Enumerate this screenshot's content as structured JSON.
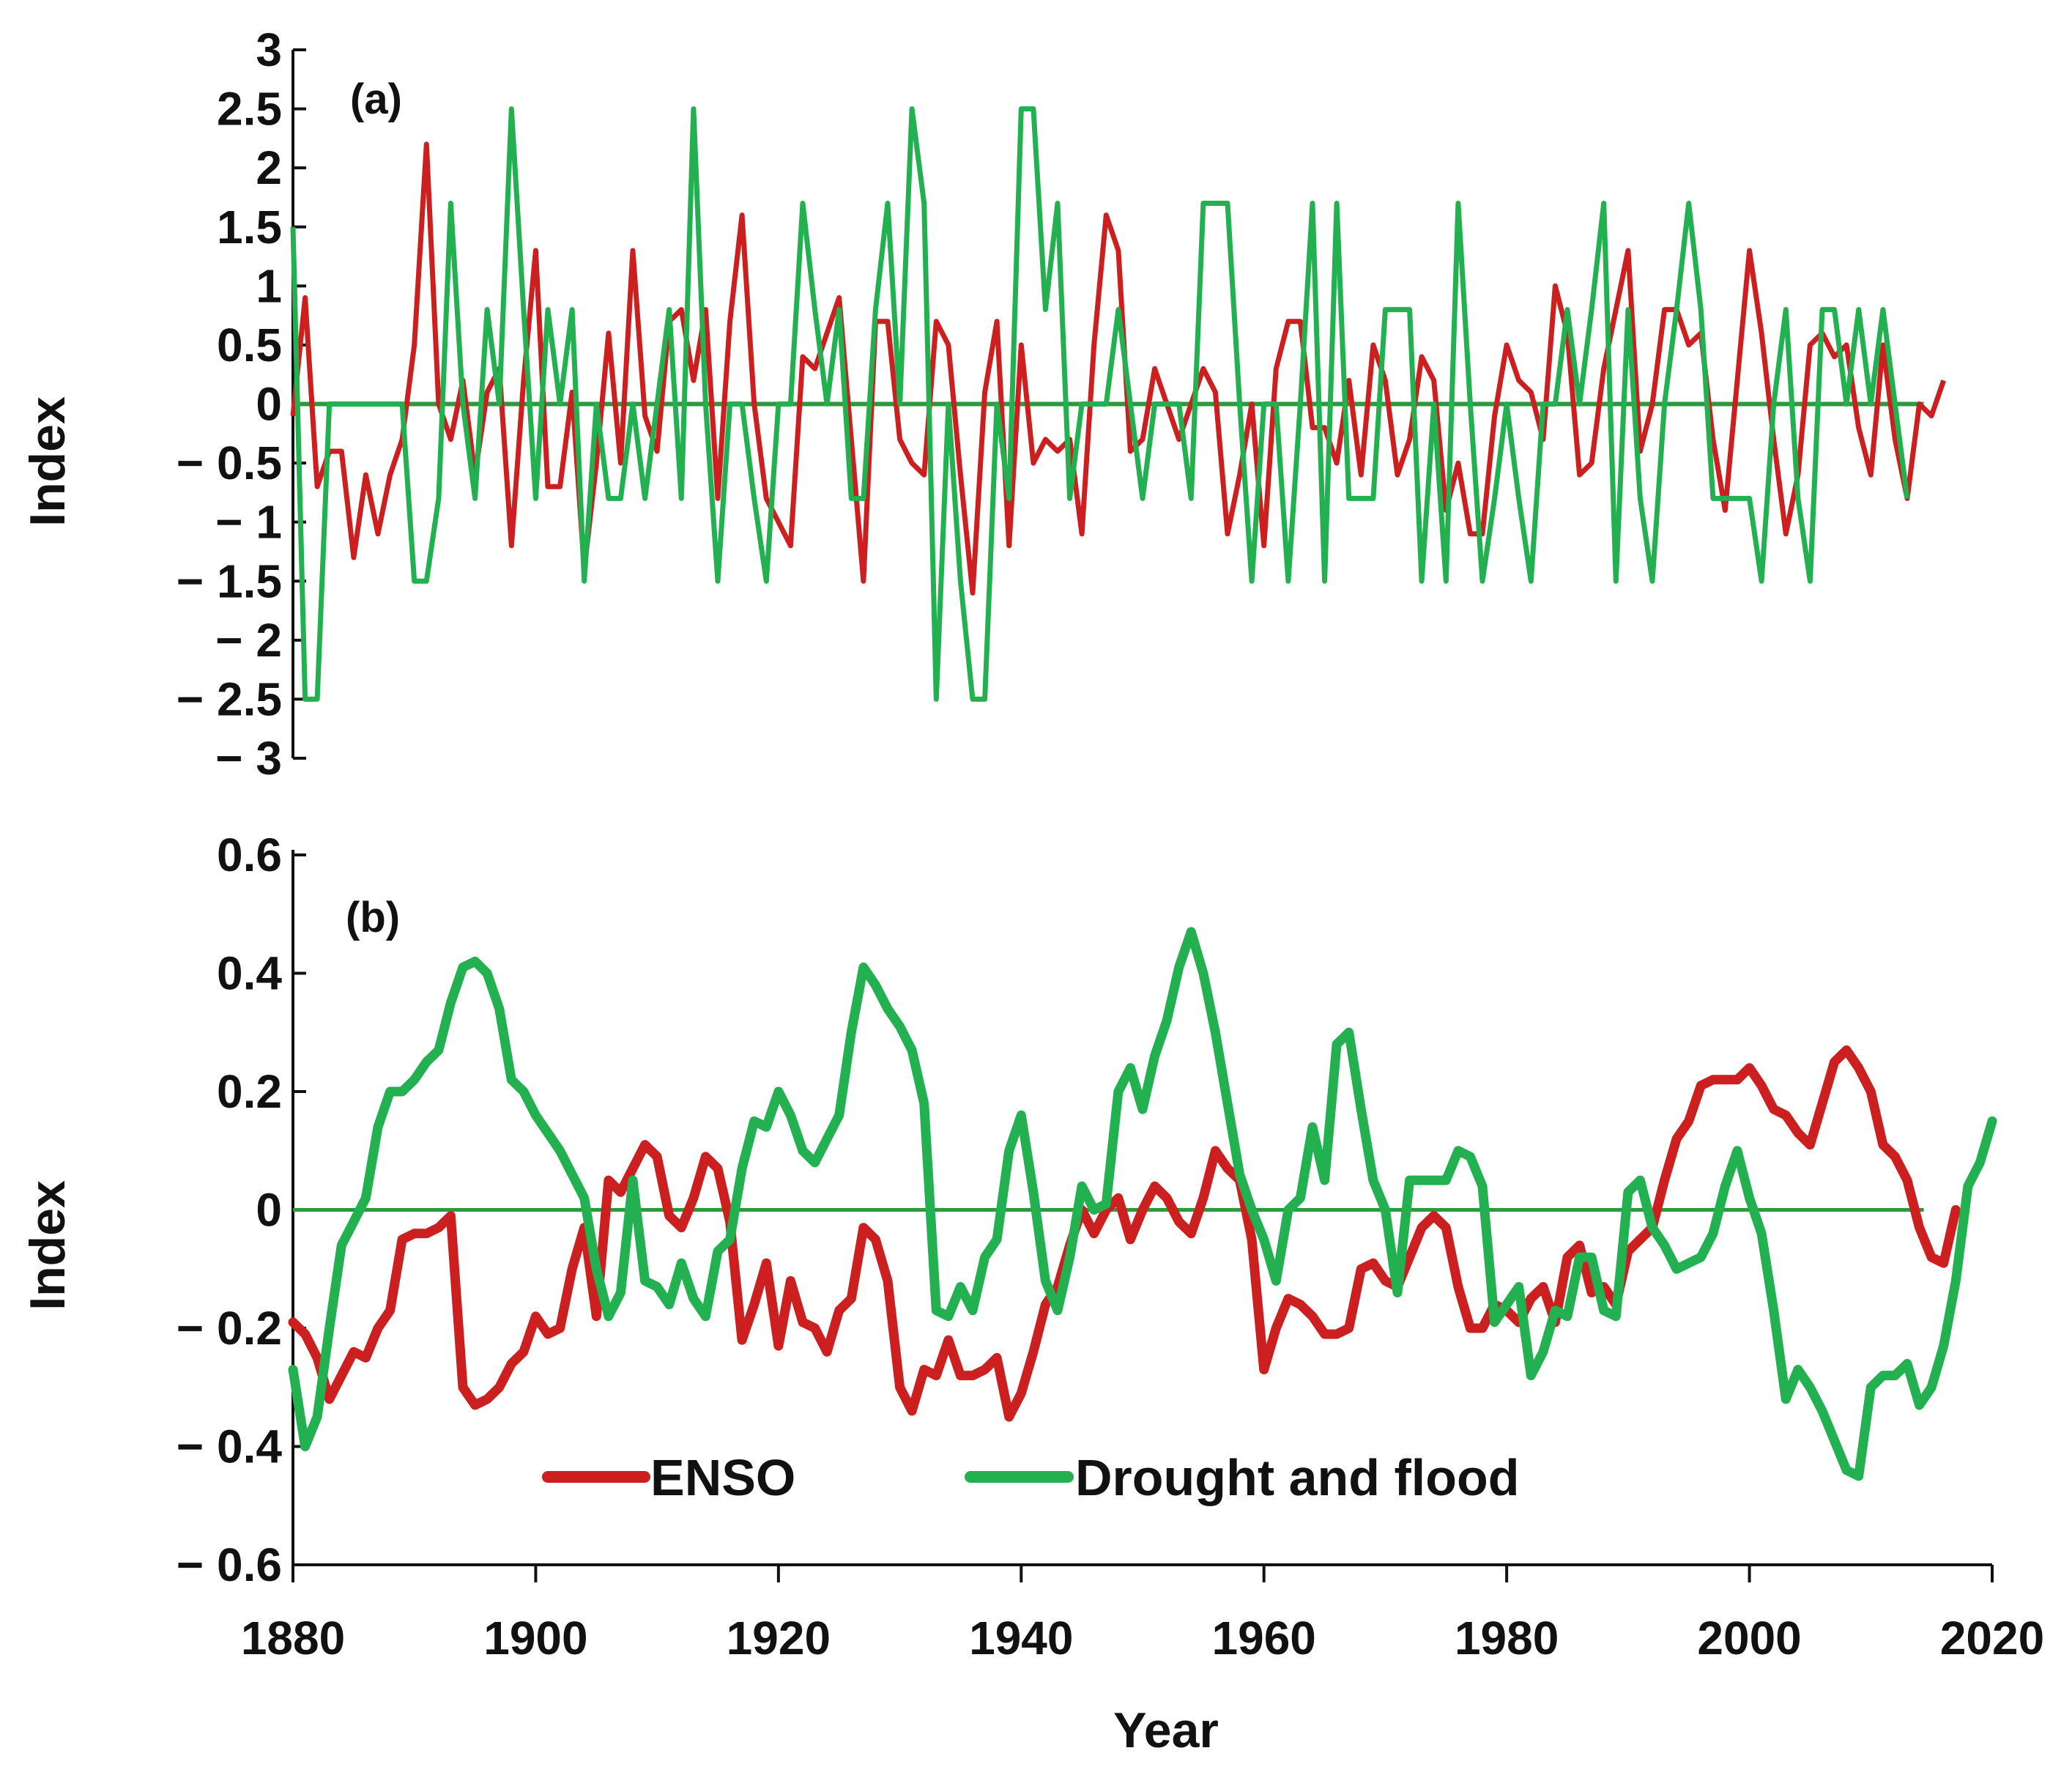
{
  "colors": {
    "enso": "#cc1f1f",
    "drought_flood": "#22b050",
    "zero_line": "#2a9a3c",
    "axis": "#111111"
  },
  "legend": {
    "enso_label": "ENSO",
    "drought_flood_label": "Drought and flood"
  },
  "x_axis": {
    "title": "Year",
    "ticks": [
      "1880",
      "1900",
      "1920",
      "1940",
      "1960",
      "1980",
      "2000",
      "2020"
    ]
  },
  "chart_data": [
    {
      "type": "line",
      "panel_label": "(a)",
      "ylabel": "Index",
      "xlabel": "Year",
      "xlim": [
        1880,
        2020
      ],
      "ylim": [
        -3,
        3
      ],
      "ytick_values": [
        -3,
        -2.5,
        -2,
        -1.5,
        -1,
        -0.5,
        0,
        0.5,
        1,
        1.5,
        2,
        2.5,
        3
      ],
      "ytick_labels": [
        "− 3",
        "− 2.5",
        "− 2",
        "− 1.5",
        "− 1",
        "− 0.5",
        "0",
        "0.5",
        "1",
        "1.5",
        "2",
        "2.5",
        "3"
      ],
      "grid": false,
      "reference_line": 0,
      "series": [
        {
          "name": "ENSO",
          "x_start": 1880,
          "values": [
            -0.1,
            0.9,
            -0.7,
            -0.4,
            -0.4,
            -1.3,
            -0.6,
            -1.1,
            -0.6,
            -0.3,
            0.5,
            2.2,
            0.0,
            -0.3,
            0.2,
            -0.6,
            0.1,
            0.3,
            -1.2,
            0.2,
            1.3,
            -0.7,
            -0.7,
            0.1,
            -1.4,
            -0.5,
            0.6,
            -0.5,
            1.3,
            -0.1,
            -0.4,
            0.7,
            0.8,
            0.2,
            0.8,
            -0.8,
            0.7,
            1.6,
            0.0,
            -0.8,
            -1.0,
            -1.2,
            0.4,
            0.3,
            0.6,
            0.9,
            -0.3,
            -1.5,
            0.7,
            0.7,
            -0.3,
            -0.5,
            -0.6,
            0.7,
            0.5,
            -0.6,
            -1.6,
            0.1,
            0.7,
            -1.2,
            0.5,
            -0.5,
            -0.3,
            -0.4,
            -0.3,
            -1.1,
            0.5,
            1.6,
            1.3,
            -0.4,
            -0.3,
            0.3,
            0.0,
            -0.3,
            0.0,
            0.3,
            0.1,
            -1.1,
            -0.6,
            0.0,
            -1.2,
            0.3,
            0.7,
            0.7,
            -0.2,
            -0.2,
            -0.5,
            0.2,
            -0.6,
            0.5,
            0.2,
            -0.6,
            -0.3,
            0.4,
            0.2,
            -0.9,
            -0.5,
            -1.1,
            -1.1,
            -0.1,
            0.5,
            0.2,
            0.1,
            -0.3,
            1.0,
            0.6,
            -0.6,
            -0.5,
            0.3,
            0.8,
            1.3,
            -0.4,
            0.0,
            0.8,
            0.8,
            0.5,
            0.6,
            -0.3,
            -0.9,
            0.2,
            1.3,
            0.6,
            -0.3,
            -1.1,
            -0.6,
            0.5,
            0.6,
            0.4,
            0.5,
            -0.2,
            -0.6,
            0.5,
            -0.3,
            -0.8,
            0.0,
            -0.1,
            0.2
          ]
        },
        {
          "name": "Drought and flood",
          "x_start": 1880,
          "values": [
            1.5,
            -2.5,
            -2.5,
            0.0,
            0.0,
            0.0,
            0.0,
            0.0,
            0.0,
            0.0,
            -1.5,
            -1.5,
            -0.8,
            1.7,
            0.0,
            -0.8,
            0.8,
            0.0,
            2.5,
            0.8,
            -0.8,
            0.8,
            0.0,
            0.8,
            -1.5,
            0.0,
            -0.8,
            -0.8,
            0.0,
            -0.8,
            0.0,
            0.8,
            -0.8,
            2.5,
            0.0,
            -1.5,
            0.0,
            0.0,
            -0.8,
            -1.5,
            0.0,
            0.0,
            1.7,
            0.8,
            0.0,
            0.8,
            -0.8,
            -0.8,
            0.8,
            1.7,
            0.0,
            2.5,
            1.7,
            -2.5,
            0.0,
            -1.5,
            -2.5,
            -2.5,
            0.0,
            -0.8,
            2.5,
            2.5,
            0.8,
            1.7,
            -0.8,
            0.0,
            0.0,
            0.0,
            0.8,
            0.0,
            -0.8,
            0.0,
            0.0,
            0.0,
            -0.8,
            1.7,
            1.7,
            1.7,
            0.0,
            -1.5,
            0.0,
            0.0,
            -1.5,
            0.0,
            1.7,
            -1.5,
            1.7,
            -0.8,
            -0.8,
            -0.8,
            0.8,
            0.8,
            0.8,
            -1.5,
            0.0,
            -1.5,
            1.7,
            0.0,
            -1.5,
            -0.8,
            0.0,
            -0.8,
            -1.5,
            0.0,
            0.0,
            0.8,
            0.0,
            0.8,
            1.7,
            -1.5,
            0.8,
            -0.8,
            -1.5,
            0.0,
            0.8,
            1.7,
            0.8,
            -0.8,
            -0.8,
            -0.8,
            -0.8,
            -1.5,
            0.0,
            0.8,
            -0.8,
            -1.5,
            0.8,
            0.8,
            0.0,
            0.8,
            0.0,
            0.8,
            0.0,
            -0.8
          ]
        }
      ]
    },
    {
      "type": "line",
      "panel_label": "(b)",
      "ylabel": "Index",
      "xlabel": "Year",
      "xlim": [
        1880,
        2020
      ],
      "ylim": [
        -0.6,
        0.6
      ],
      "ytick_values": [
        -0.6,
        -0.4,
        -0.2,
        0,
        0.2,
        0.4,
        0.6
      ],
      "ytick_labels": [
        "− 0.6",
        "− 0.4",
        "− 0.2",
        "0",
        "0.2",
        "0.4",
        "0.6"
      ],
      "grid": false,
      "reference_line": 0,
      "legend_position": "bottom-center",
      "series": [
        {
          "name": "ENSO",
          "x_start": 1880,
          "values": [
            -0.19,
            -0.21,
            -0.25,
            -0.32,
            -0.28,
            -0.24,
            -0.25,
            -0.2,
            -0.17,
            -0.05,
            -0.04,
            -0.04,
            -0.03,
            -0.01,
            -0.3,
            -0.33,
            -0.32,
            -0.3,
            -0.26,
            -0.24,
            -0.18,
            -0.21,
            -0.2,
            -0.1,
            -0.03,
            -0.18,
            0.05,
            0.03,
            0.07,
            0.11,
            0.09,
            -0.01,
            -0.03,
            0.02,
            0.09,
            0.07,
            -0.02,
            -0.22,
            -0.16,
            -0.09,
            -0.23,
            -0.12,
            -0.19,
            -0.2,
            -0.24,
            -0.17,
            -0.15,
            -0.03,
            -0.05,
            -0.12,
            -0.3,
            -0.34,
            -0.27,
            -0.28,
            -0.22,
            -0.28,
            -0.28,
            -0.27,
            -0.25,
            -0.35,
            -0.31,
            -0.24,
            -0.16,
            -0.13,
            -0.06,
            0.0,
            -0.04,
            0.0,
            0.02,
            -0.05,
            0.0,
            0.04,
            0.02,
            -0.02,
            -0.04,
            0.02,
            0.1,
            0.07,
            0.05,
            -0.05,
            -0.27,
            -0.2,
            -0.15,
            -0.16,
            -0.18,
            -0.21,
            -0.21,
            -0.2,
            -0.1,
            -0.09,
            -0.12,
            -0.13,
            -0.08,
            -0.03,
            -0.01,
            -0.03,
            -0.13,
            -0.2,
            -0.2,
            -0.16,
            -0.17,
            -0.19,
            -0.15,
            -0.13,
            -0.19,
            -0.08,
            -0.06,
            -0.14,
            -0.13,
            -0.16,
            -0.07,
            -0.05,
            -0.03,
            0.05,
            0.12,
            0.15,
            0.21,
            0.22,
            0.22,
            0.22,
            0.24,
            0.21,
            0.17,
            0.16,
            0.13,
            0.11,
            0.18,
            0.25,
            0.27,
            0.24,
            0.2,
            0.11,
            0.09,
            0.05,
            -0.03,
            -0.08,
            -0.09,
            0.0
          ]
        },
        {
          "name": "Drought and flood",
          "x_start": 1880,
          "values": [
            -0.27,
            -0.4,
            -0.35,
            -0.2,
            -0.06,
            -0.02,
            0.02,
            0.14,
            0.2,
            0.2,
            0.22,
            0.25,
            0.27,
            0.35,
            0.41,
            0.42,
            0.4,
            0.34,
            0.22,
            0.2,
            0.16,
            0.13,
            0.1,
            0.06,
            0.02,
            -0.1,
            -0.18,
            -0.14,
            0.05,
            -0.12,
            -0.13,
            -0.16,
            -0.09,
            -0.15,
            -0.18,
            -0.07,
            -0.05,
            0.07,
            0.15,
            0.14,
            0.2,
            0.16,
            0.1,
            0.08,
            0.12,
            0.16,
            0.3,
            0.41,
            0.38,
            0.34,
            0.31,
            0.27,
            0.18,
            -0.17,
            -0.18,
            -0.13,
            -0.17,
            -0.08,
            -0.05,
            0.1,
            0.16,
            0.03,
            -0.12,
            -0.17,
            -0.08,
            0.04,
            0.0,
            0.01,
            0.2,
            0.24,
            0.17,
            0.26,
            0.32,
            0.41,
            0.47,
            0.4,
            0.3,
            0.18,
            0.06,
            0.0,
            -0.05,
            -0.12,
            0.0,
            0.02,
            0.14,
            0.05,
            0.28,
            0.3,
            0.17,
            0.05,
            0.0,
            -0.14,
            0.05,
            0.05,
            0.05,
            0.05,
            0.1,
            0.09,
            0.04,
            -0.19,
            -0.16,
            -0.13,
            -0.28,
            -0.24,
            -0.17,
            -0.18,
            -0.08,
            -0.08,
            -0.17,
            -0.18,
            0.03,
            0.05,
            -0.03,
            -0.06,
            -0.1,
            -0.09,
            -0.08,
            -0.04,
            0.04,
            0.1,
            0.02,
            -0.04,
            -0.17,
            -0.32,
            -0.27,
            -0.3,
            -0.34,
            -0.39,
            -0.44,
            -0.45,
            -0.3,
            -0.28,
            -0.28,
            -0.26,
            -0.33,
            -0.3,
            -0.23,
            -0.12,
            0.04,
            0.08,
            0.15
          ]
        }
      ]
    }
  ]
}
